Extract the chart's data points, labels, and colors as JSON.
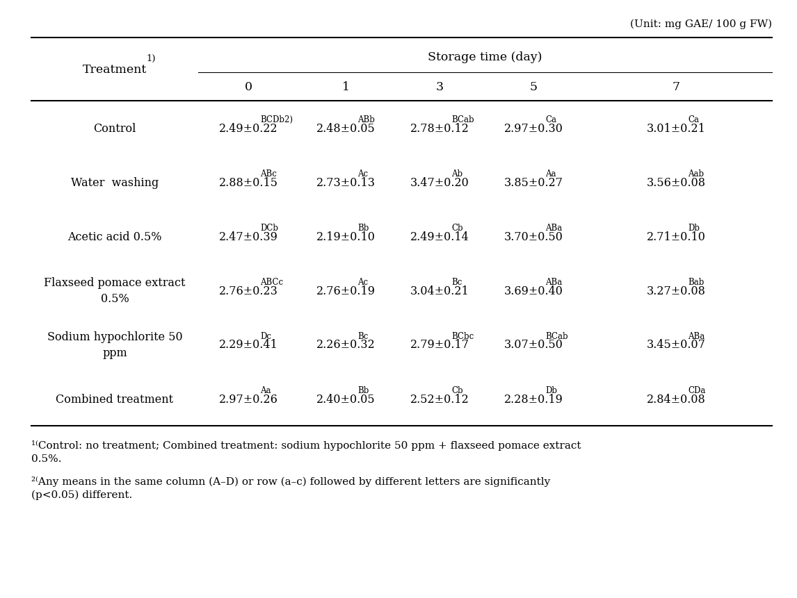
{
  "unit_text": "(Unit: mg GAE/ 100 g FW)",
  "storage_time_header": "Storage time (day)",
  "treatment_header": "Treatment",
  "treatment_superscript": "1)",
  "col_labels": [
    "0",
    "1",
    "3",
    "5",
    "7"
  ],
  "treatments": [
    "Control",
    "Water  washing",
    "Acetic acid 0.5%",
    "Flaxseed pomace extract\n0.5%",
    "Sodium hypochlorite 50\nppm",
    "Combined treatment"
  ],
  "cell_data": [
    [
      "2.49±0.22",
      "BCDb2)",
      "2.48±0.05",
      "ABb",
      "2.78±0.12",
      "BCab",
      "2.97±0.30",
      "Ca",
      "3.01±0.21",
      "Ca"
    ],
    [
      "2.88±0.15",
      "ABc",
      "2.73±0.13",
      "Ac",
      "3.47±0.20",
      "Ab",
      "3.85±0.27",
      "Aa",
      "3.56±0.08",
      "Aab"
    ],
    [
      "2.47±0.39",
      "DCb",
      "2.19±0.10",
      "Bb",
      "2.49±0.14",
      "Cb",
      "3.70±0.50",
      "ABa",
      "2.71±0.10",
      "Db"
    ],
    [
      "2.76±0.23",
      "ABCc",
      "2.76±0.19",
      "Ac",
      "3.04±0.21",
      "Bc",
      "3.69±0.40",
      "ABa",
      "3.27±0.08",
      "Bab"
    ],
    [
      "2.29±0.41",
      "Dc",
      "2.26±0.32",
      "Bc",
      "2.79±0.17",
      "BCbc",
      "3.07±0.50",
      "BCab",
      "3.45±0.07",
      "ABa"
    ],
    [
      "2.97±0.26",
      "Aa",
      "2.40±0.05",
      "Bb",
      "2.52±0.12",
      "Cb",
      "2.28±0.19",
      "Db",
      "2.84±0.08",
      "CDa"
    ]
  ],
  "footnote1": "Control: no treatment; Combined treatment: sodium hypochlorite 50 ppm + flaxseed pomace extract\n0.5%.",
  "footnote2": "Any means in the same column (A–D) or row (a–c) followed by different letters are significantly\n(p<0.05) different.",
  "bg_color": "#ffffff",
  "text_color": "#000000",
  "fontsize_main": 11.5,
  "fontsize_unit": 11,
  "fontsize_footnote": 11
}
